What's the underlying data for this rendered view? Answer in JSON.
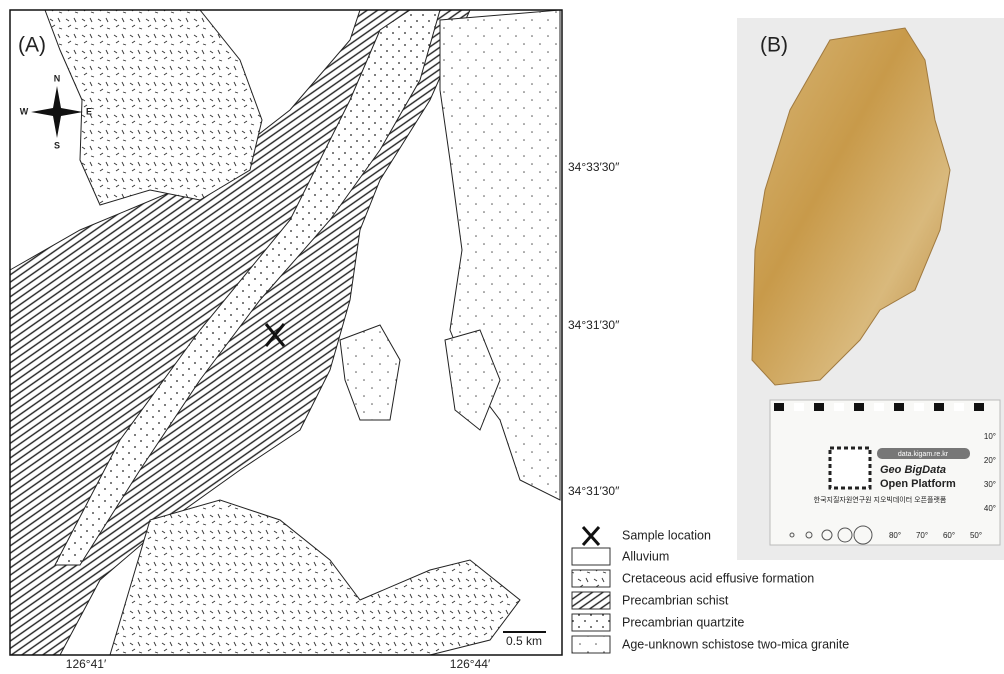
{
  "panel_a": {
    "label": "(A)",
    "compass": {
      "n": "N",
      "s": "S",
      "e": "E",
      "w": "W"
    },
    "latitude_labels": [
      "34°33′30″",
      "34°31′30″",
      "34°31′30″"
    ],
    "longitude_labels": [
      "126°41′",
      "126°44′"
    ],
    "scale_bar": "0.5 km",
    "legend": [
      "Sample location",
      "Alluvium",
      "Cretaceous acid effusive formation",
      "Precambrian schist",
      "Precambrian quartzite",
      "Age-unknown schistose two-mica granite"
    ]
  },
  "panel_b": {
    "label": "(B)",
    "card": {
      "url": "data.kigam.re.kr",
      "brand_line1": "Geo BigData",
      "brand_line2": "Open Platform",
      "org": "한국지질자원연구원 지오빅데이터 오픈플랫폼",
      "angles_right": [
        "10°",
        "20°",
        "30°",
        "40°"
      ],
      "angles_bottom": [
        "80°",
        "70°",
        "60°",
        "50°"
      ]
    }
  }
}
